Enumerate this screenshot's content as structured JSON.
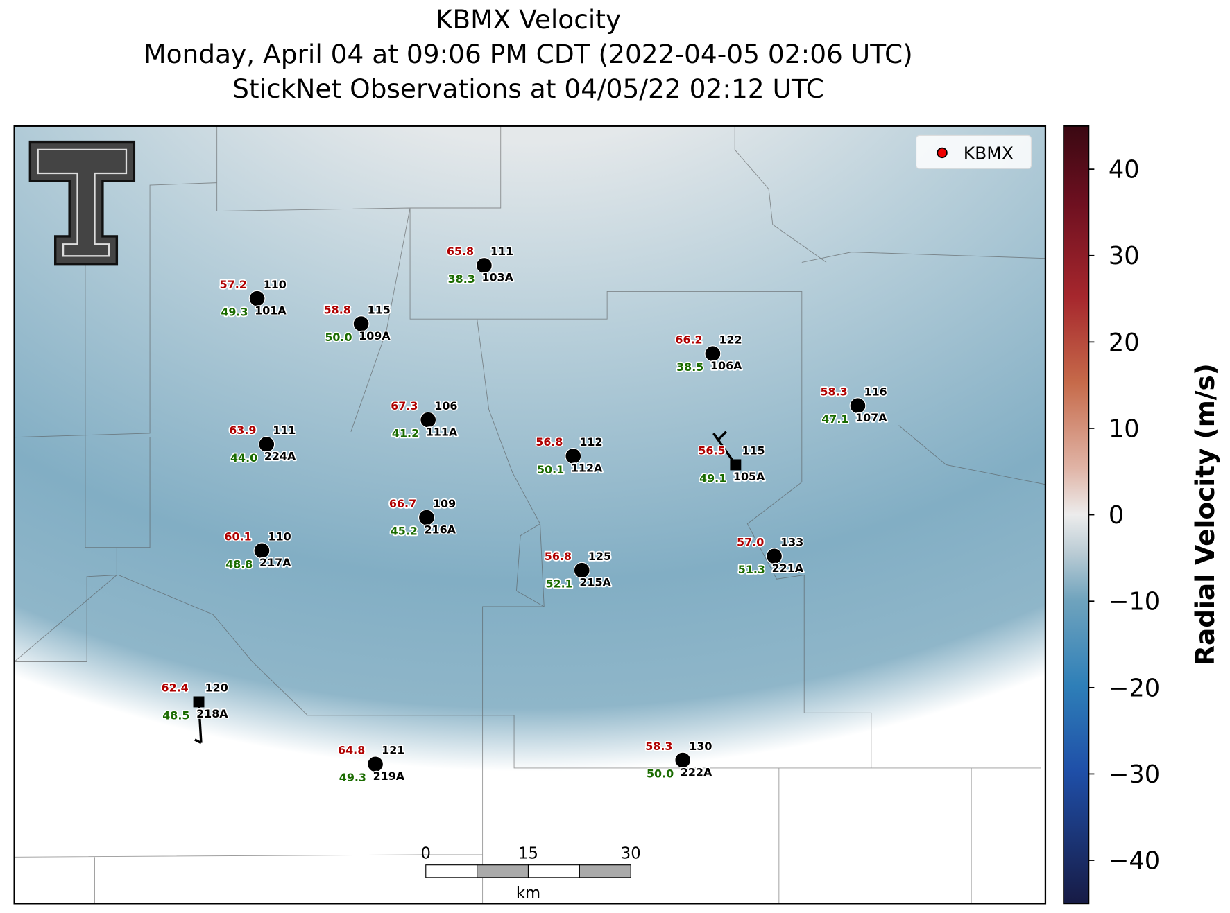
{
  "title": [
    "KBMX Velocity",
    "Monday, April 04 at 09:06 PM CDT (2022-04-05 02:06 UTC)",
    "StickNet Observations at 04/05/22 02:12 UTC"
  ],
  "legend": {
    "label": "KBMX"
  },
  "colorbar": {
    "label": "Radial Velocity (m/s)",
    "range": [
      -45,
      45
    ],
    "ticks": [
      {
        "value": -40,
        "label": "−40"
      },
      {
        "value": -30,
        "label": "−30"
      },
      {
        "value": -20,
        "label": "−20"
      },
      {
        "value": -10,
        "label": "−10"
      },
      0,
      10,
      20,
      30,
      40
    ]
  },
  "scale_bar": {
    "ticks": [
      "0",
      "15",
      "30"
    ],
    "unit": "km"
  },
  "stations": [
    {
      "id": "103A",
      "temp": "65.8",
      "dewpoint": "38.3",
      "wind": "111"
    },
    {
      "id": "101A",
      "temp": "57.2",
      "dewpoint": "49.3",
      "wind": "110"
    },
    {
      "id": "109A",
      "temp": "58.8",
      "dewpoint": "50.0",
      "wind": "115"
    },
    {
      "id": "106A",
      "temp": "66.2",
      "dewpoint": "38.5",
      "wind": "122"
    },
    {
      "id": "107A",
      "temp": "58.3",
      "dewpoint": "47.1",
      "wind": "116"
    },
    {
      "id": "111A",
      "temp": "67.3",
      "dewpoint": "41.2",
      "wind": "106"
    },
    {
      "id": "224A",
      "temp": "63.9",
      "dewpoint": "44.0",
      "wind": "111"
    },
    {
      "id": "112A",
      "temp": "56.8",
      "dewpoint": "50.1",
      "wind": "112"
    },
    {
      "id": "105A",
      "temp": "56.5",
      "dewpoint": "49.1",
      "wind": "115"
    },
    {
      "id": "216A",
      "temp": "66.7",
      "dewpoint": "45.2",
      "wind": "109"
    },
    {
      "id": "217A",
      "temp": "60.1",
      "dewpoint": "48.8",
      "wind": "110"
    },
    {
      "id": "221A",
      "temp": "57.0",
      "dewpoint": "51.3",
      "wind": "133"
    },
    {
      "id": "215A",
      "temp": "56.8",
      "dewpoint": "52.1",
      "wind": "125"
    },
    {
      "id": "218A",
      "temp": "62.4",
      "dewpoint": "48.5",
      "wind": "120"
    },
    {
      "id": "219A",
      "temp": "64.8",
      "dewpoint": "49.3",
      "wind": "121"
    },
    {
      "id": "222A",
      "temp": "58.3",
      "dewpoint": "50.0",
      "wind": "130"
    }
  ]
}
